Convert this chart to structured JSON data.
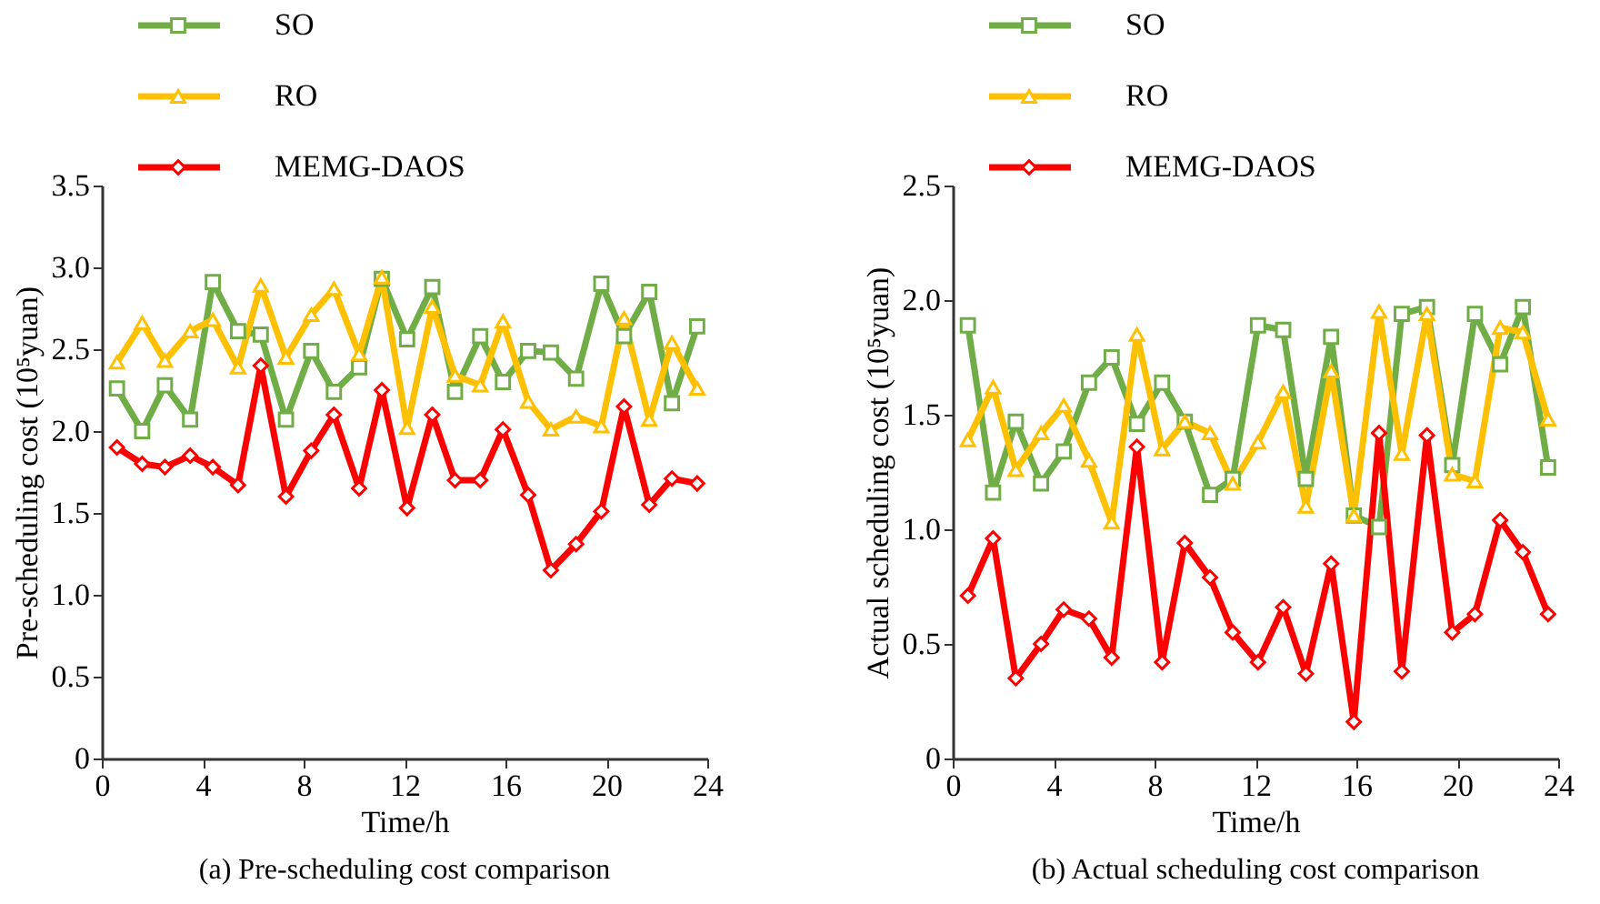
{
  "chart_data": [
    {
      "type": "line",
      "title": "(a) Pre-scheduling cost comparison",
      "xlabel": "Time/h",
      "ylabel": "Pre-scheduling cost (10⁵yuan)",
      "x": [
        0.6,
        1.6,
        2.5,
        3.5,
        4.4,
        5.4,
        6.3,
        7.3,
        8.3,
        9.2,
        10.2,
        11.1,
        12.1,
        13.1,
        14.0,
        15.0,
        15.9,
        16.9,
        17.8,
        18.8,
        19.8,
        20.7,
        21.7,
        22.6,
        23.6
      ],
      "series": [
        {
          "name": "SO",
          "color": "#70ad47",
          "marker": "square",
          "values": [
            2.26,
            2.0,
            2.28,
            2.07,
            2.91,
            2.61,
            2.59,
            2.07,
            2.49,
            2.24,
            2.39,
            2.93,
            2.56,
            2.88,
            2.24,
            2.58,
            2.3,
            2.49,
            2.48,
            2.32,
            2.9,
            2.58,
            2.85,
            2.17,
            2.64
          ]
        },
        {
          "name": "RO",
          "color": "#ffc000",
          "marker": "triangle",
          "values": [
            2.42,
            2.66,
            2.43,
            2.61,
            2.68,
            2.39,
            2.89,
            2.45,
            2.71,
            2.87,
            2.47,
            2.94,
            2.02,
            2.76,
            2.34,
            2.28,
            2.67,
            2.18,
            2.01,
            2.09,
            2.03,
            2.69,
            2.07,
            2.54,
            2.26
          ]
        },
        {
          "name": "MEMG-DAOS",
          "color": "#ff0000",
          "marker": "diamond",
          "values": [
            1.9,
            1.8,
            1.78,
            1.85,
            1.78,
            1.67,
            2.4,
            1.6,
            1.88,
            2.1,
            1.65,
            2.25,
            1.53,
            2.1,
            1.7,
            1.7,
            2.01,
            1.61,
            1.15,
            1.31,
            1.51,
            2.15,
            1.55,
            1.71,
            1.68
          ]
        }
      ],
      "xlim": [
        0,
        24
      ],
      "xticks": [
        0,
        4,
        8,
        12,
        16,
        20,
        24
      ],
      "ylim": [
        0,
        3.5
      ],
      "yticks": [
        0,
        {
          "value": 0.5,
          "label": "0.5"
        },
        {
          "value": 1,
          "label": "1.0"
        },
        {
          "value": 1.5,
          "label": "1.5"
        },
        {
          "value": 2,
          "label": "2.0"
        },
        {
          "value": 2.5,
          "label": "2.5"
        },
        {
          "value": 3,
          "label": "3.0"
        },
        {
          "value": 3.5,
          "label": "3.5"
        }
      ],
      "grid": false,
      "legend": "top left",
      "line_style": "solid"
    },
    {
      "type": "line",
      "title": "(b) Actual scheduling cost comparison",
      "xlabel": "Time/h",
      "ylabel": "Actual scheduling cost (10⁵yuan)",
      "x": [
        0.6,
        1.6,
        2.5,
        3.5,
        4.4,
        5.4,
        6.3,
        7.3,
        8.3,
        9.2,
        10.2,
        11.1,
        12.1,
        13.1,
        14.0,
        15.0,
        15.9,
        16.9,
        17.8,
        18.8,
        19.8,
        20.7,
        21.7,
        22.6,
        23.6
      ],
      "series": [
        {
          "name": "SO",
          "color": "#70ad47",
          "marker": "square",
          "values": [
            1.89,
            1.16,
            1.47,
            1.2,
            1.34,
            1.64,
            1.75,
            1.46,
            1.64,
            1.47,
            1.15,
            1.22,
            1.89,
            1.87,
            1.22,
            1.84,
            1.06,
            1.01,
            1.94,
            1.97,
            1.28,
            1.94,
            1.72,
            1.97,
            1.27
          ]
        },
        {
          "name": "RO",
          "color": "#ffc000",
          "marker": "triangle",
          "values": [
            1.39,
            1.62,
            1.26,
            1.42,
            1.54,
            1.3,
            1.03,
            1.85,
            1.35,
            1.47,
            1.42,
            1.2,
            1.38,
            1.6,
            1.1,
            1.69,
            1.06,
            1.95,
            1.33,
            1.94,
            1.24,
            1.21,
            1.88,
            1.86,
            1.48
          ]
        },
        {
          "name": "MEMG-DAOS",
          "color": "#ff0000",
          "marker": "diamond",
          "values": [
            0.71,
            0.96,
            0.35,
            0.5,
            0.65,
            0.61,
            0.44,
            1.36,
            0.42,
            0.94,
            0.79,
            0.55,
            0.42,
            0.66,
            0.37,
            0.85,
            0.16,
            1.42,
            0.38,
            1.41,
            0.55,
            0.63,
            1.04,
            0.9,
            0.63
          ]
        }
      ],
      "xlim": [
        0,
        24
      ],
      "xticks": [
        0,
        4,
        8,
        12,
        16,
        20,
        24
      ],
      "ylim": [
        0,
        2.5
      ],
      "yticks": [
        0,
        {
          "value": 0.5,
          "label": "0.5"
        },
        {
          "value": 1,
          "label": "1.0"
        },
        {
          "value": 1.5,
          "label": "1.5"
        },
        {
          "value": 2,
          "label": "2.0"
        },
        {
          "value": 2.5,
          "label": "2.5"
        }
      ],
      "grid": false,
      "legend": "top left",
      "line_style": "solid"
    }
  ]
}
